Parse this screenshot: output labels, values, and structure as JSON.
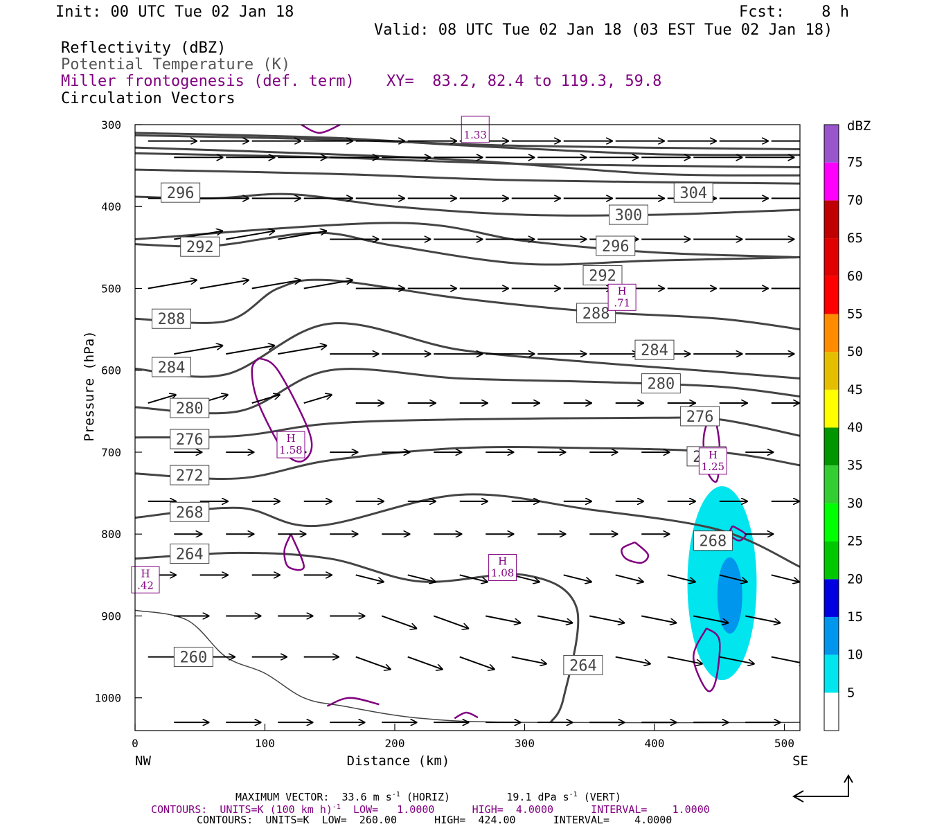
{
  "header": {
    "init": "Init: 00 UTC Tue 02 Jan 18",
    "fcst": "Fcst:    8 h",
    "valid": "Valid: 08 UTC Tue 02 Jan 18 (03 EST Tue 02 Jan 18)",
    "fields": [
      "Reflectivity (dBZ)",
      "Potential Temperature (K)",
      "Miller frontogenesis (def. term)",
      "Circulation Vectors"
    ],
    "xy": "XY=  83.2, 82.4 to 119.3, 59.8"
  },
  "colors": {
    "theta": "#444444",
    "fronto": "#800080",
    "vector": "#000000",
    "refl_5": "#00e5ee",
    "refl_10": "#0096ee"
  },
  "chart_data": {
    "type": "cross-section",
    "xlabel": "Distance (km)",
    "ylabel": "Pressure (hPa)",
    "xlim": [
      0,
      512
    ],
    "ylim": [
      1040,
      300
    ],
    "x_ticks": [
      0,
      100,
      200,
      300,
      400,
      500
    ],
    "y_ticks": [
      300,
      400,
      500,
      600,
      700,
      800,
      900,
      1000
    ],
    "left_end": "NW",
    "right_end": "SE",
    "theta_contours": [
      {
        "label": "296",
        "points": [
          [
            0,
            388
          ],
          [
            60,
            390
          ],
          [
            120,
            385
          ],
          [
            200,
            400
          ],
          [
            300,
            410
          ],
          [
            400,
            410
          ],
          [
            512,
            404
          ]
        ],
        "labels_at": [
          [
            35,
            383
          ]
        ]
      },
      {
        "label": "304",
        "points": [
          [
            0,
            310
          ],
          [
            150,
            316
          ],
          [
            260,
            326
          ],
          [
            400,
            336
          ],
          [
            512,
            337
          ]
        ],
        "labels_at": [
          [
            430,
            383
          ]
        ]
      },
      {
        "label": "300",
        "points": [
          [
            0,
            328
          ],
          [
            150,
            336
          ],
          [
            260,
            344
          ],
          [
            400,
            360
          ],
          [
            512,
            362
          ]
        ],
        "labels_at": [
          [
            380,
            410
          ]
        ]
      },
      {
        "label": "292",
        "points": [
          [
            0,
            446
          ],
          [
            60,
            448
          ],
          [
            140,
            432
          ],
          [
            200,
            448
          ],
          [
            300,
            470
          ],
          [
            400,
            466
          ],
          [
            512,
            462
          ]
        ],
        "labels_at": [
          [
            50,
            449
          ],
          [
            360,
            484
          ]
        ]
      },
      {
        "label": "296b",
        "points": [
          [
            0,
            440
          ],
          [
            200,
            420
          ],
          [
            300,
            442
          ],
          [
            400,
            456
          ],
          [
            512,
            462
          ]
        ],
        "labels_at": [
          [
            370,
            448
          ]
        ]
      },
      {
        "label": "288",
        "points": [
          [
            0,
            537
          ],
          [
            70,
            540
          ],
          [
            110,
            500
          ],
          [
            150,
            490
          ],
          [
            250,
            512
          ],
          [
            350,
            528
          ],
          [
            450,
            537
          ],
          [
            512,
            550
          ]
        ],
        "labels_at": [
          [
            28,
            537
          ],
          [
            355,
            530
          ]
        ]
      },
      {
        "label": "284",
        "points": [
          [
            0,
            598
          ],
          [
            70,
            605
          ],
          [
            150,
            543
          ],
          [
            250,
            575
          ],
          [
            350,
            590
          ],
          [
            450,
            602
          ],
          [
            512,
            610
          ]
        ],
        "labels_at": [
          [
            28,
            596
          ],
          [
            400,
            575
          ]
        ]
      },
      {
        "label": "280",
        "points": [
          [
            0,
            645
          ],
          [
            80,
            650
          ],
          [
            150,
            600
          ],
          [
            250,
            610
          ],
          [
            350,
            614
          ],
          [
            450,
            620
          ],
          [
            512,
            632
          ]
        ],
        "labels_at": [
          [
            42,
            646
          ],
          [
            405,
            616
          ]
        ]
      },
      {
        "label": "276",
        "points": [
          [
            0,
            682
          ],
          [
            80,
            680
          ],
          [
            150,
            665
          ],
          [
            250,
            660
          ],
          [
            400,
            658
          ],
          [
            450,
            660
          ],
          [
            512,
            680
          ]
        ],
        "labels_at": [
          [
            42,
            684
          ],
          [
            435,
            656
          ]
        ]
      },
      {
        "label": "272",
        "points": [
          [
            0,
            726
          ],
          [
            80,
            732
          ],
          [
            150,
            710
          ],
          [
            250,
            695
          ],
          [
            350,
            695
          ],
          [
            450,
            700
          ],
          [
            512,
            716
          ]
        ],
        "labels_at": [
          [
            42,
            728
          ],
          [
            440,
            705
          ]
        ]
      },
      {
        "label": "268",
        "points": [
          [
            0,
            780
          ],
          [
            80,
            768
          ],
          [
            140,
            790
          ],
          [
            250,
            752
          ],
          [
            350,
            770
          ],
          [
            450,
            795
          ],
          [
            512,
            840
          ]
        ],
        "labels_at": [
          [
            42,
            773
          ],
          [
            445,
            808
          ]
        ]
      },
      {
        "label": "264",
        "points": [
          [
            0,
            830
          ],
          [
            80,
            823
          ],
          [
            150,
            830
          ],
          [
            220,
            858
          ],
          [
            300,
            850
          ],
          [
            340,
            890
          ],
          [
            330,
            1000
          ],
          [
            320,
            1030
          ]
        ],
        "labels_at": [
          [
            42,
            824
          ],
          [
            345,
            960
          ]
        ]
      },
      {
        "label": "260",
        "points": [
          [
            0,
            893
          ],
          [
            40,
            905
          ],
          [
            70,
            950
          ],
          [
            100,
            970
          ],
          [
            130,
            1000
          ],
          [
            160,
            1010
          ],
          [
            220,
            1025
          ],
          [
            300,
            1030
          ],
          [
            512,
            1030
          ]
        ],
        "labels_at": [
          [
            45,
            950
          ]
        ]
      }
    ],
    "fronto_maxima": [
      {
        "label": "H",
        "value": "1.58",
        "x": 120,
        "p": 690
      },
      {
        "label": "H",
        "value": "1.08",
        "x": 283,
        "p": 840
      },
      {
        "label": "H",
        "value": ".42",
        "x": 8,
        "p": 855
      },
      {
        "label": "H",
        "value": ".71",
        "x": 375,
        "p": 510
      },
      {
        "label": "H",
        "value": "1.25",
        "x": 445,
        "p": 710
      },
      {
        "label": "",
        "value": "1.33",
        "x": 262,
        "p": 305
      }
    ],
    "reflectivity": {
      "legend_title": "dBZ",
      "levels": [
        "5",
        "10",
        "15",
        "20",
        "25",
        "30",
        "35",
        "40",
        "45",
        "50",
        "55",
        "60",
        "65",
        "70",
        "75"
      ],
      "colors": [
        "#00e5ee",
        "#0096ee",
        "#0000e0",
        "#00c800",
        "#00ff00",
        "#32ce32",
        "#009600",
        "#ffff00",
        "#e6be00",
        "#ff8c00",
        "#ff0000",
        "#e10000",
        "#c00000",
        "#ff00ff",
        "#9955cc"
      ]
    },
    "footer": {
      "max_vector": "MAXIMUM VECTOR:  33.6 m s",
      "horiz_vert": "(HORIZ)         19.1 dPa s",
      "vert": "(VERT)",
      "contours1": "CONTOURS:  UNITS=K (100 km h)",
      "contours1b": "  LOW=   1.0000      HIGH=  4.0000      INTERVAL=    1.0000",
      "contours2": "CONTOURS:  UNITS=K  LOW=  260.00      HIGH=  424.00      INTERVAL=    4.0000"
    }
  }
}
